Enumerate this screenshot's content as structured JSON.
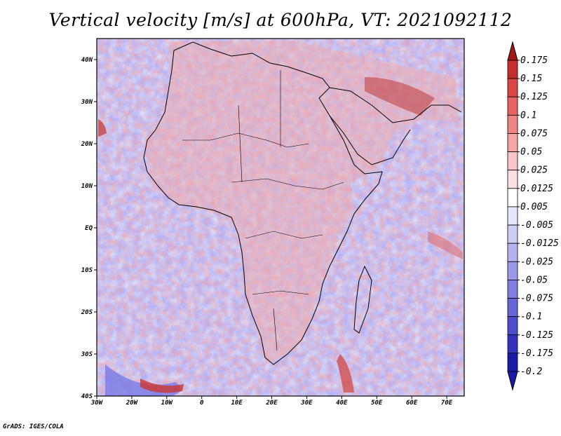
{
  "title": "Vertical velocity [m/s] at 600hPa, VT: 2021092112",
  "credit": "GrADS: IGES/COLA",
  "map": {
    "lon_labels": [
      "30W",
      "20W",
      "10W",
      "0",
      "10E",
      "20E",
      "30E",
      "40E",
      "50E",
      "60E",
      "70E"
    ],
    "lat_labels": [
      "40N",
      "30N",
      "20N",
      "10N",
      "EQ",
      "10S",
      "20S",
      "30S",
      "40S"
    ],
    "lon_range": [
      -30,
      75
    ],
    "lat_range": [
      -40,
      45
    ]
  },
  "colorbar": {
    "labels": [
      "0.175",
      "0.15",
      "0.125",
      "0.1",
      "0.075",
      "0.05",
      "0.025",
      "0.0125",
      "0.005",
      "-0.005",
      "-0.0125",
      "-0.025",
      "-0.05",
      "-0.075",
      "-0.1",
      "-0.125",
      "-0.175",
      "-0.2"
    ],
    "colors": [
      "#a01818",
      "#c62e2e",
      "#dc4646",
      "#e86464",
      "#ef8484",
      "#f4a6a6",
      "#f8c6c6",
      "#fbe0e0",
      "#ffffff",
      "#e6e6fa",
      "#ccccf5",
      "#b3b3ef",
      "#9999e8",
      "#7f7fe0",
      "#6666d6",
      "#4d4dcc",
      "#3333c0",
      "#1a1aa8",
      "#2222b0"
    ],
    "top_color": "#a01818",
    "bottom_color": "#1a1aa8"
  },
  "colors": {
    "ascent": "#e05050",
    "descent": "#6a6ae0",
    "neutral": "#ffffff",
    "coast": "#000000"
  }
}
